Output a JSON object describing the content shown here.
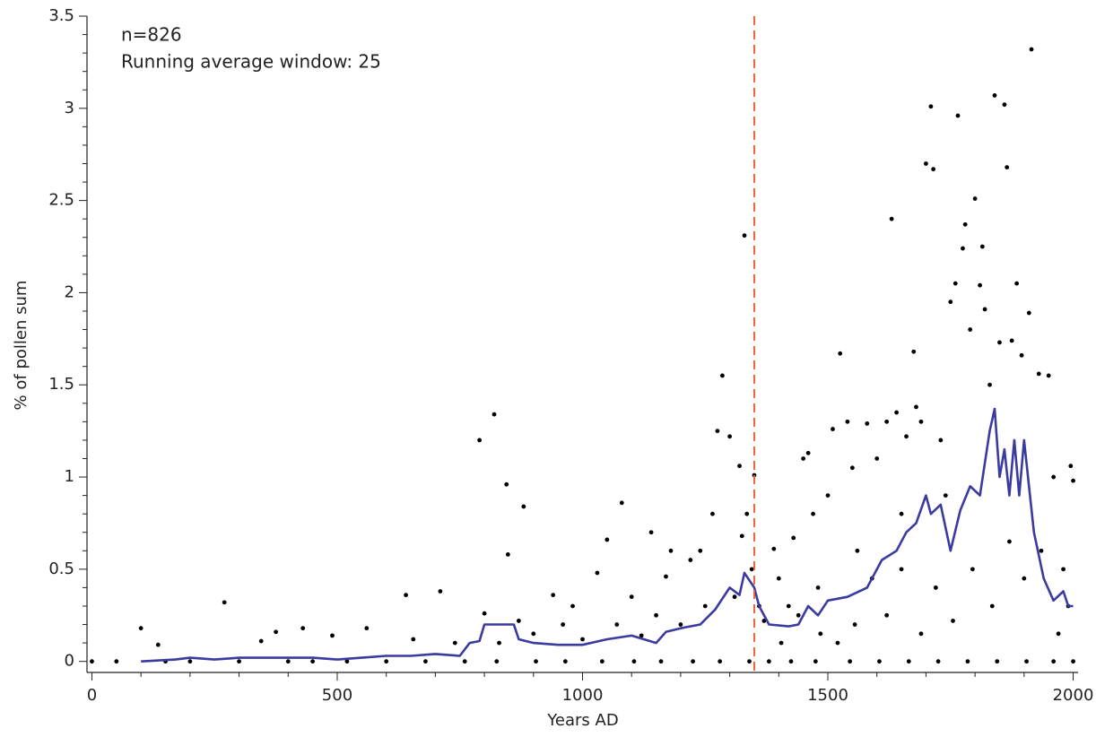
{
  "chart_data": {
    "type": "scatter",
    "annotations": [
      "n=826",
      "Running average window: 25"
    ],
    "x_label": "Years AD",
    "y_label": "% of pollen sum",
    "xlim": [
      -10,
      2010
    ],
    "ylim": [
      -0.06,
      3.5
    ],
    "xticks": [
      0,
      500,
      1000,
      1500,
      2000
    ],
    "yticks": [
      0,
      0.5,
      1,
      1.5,
      2,
      2.5,
      3,
      3.5
    ],
    "xminorticks": [
      100,
      200,
      300,
      400,
      600,
      700,
      800,
      900,
      1100,
      1200,
      1300,
      1400,
      1600,
      1700,
      1800,
      1900
    ],
    "yminorticks": [
      0.1,
      0.2,
      0.3,
      0.4,
      0.6,
      0.7,
      0.8,
      0.9,
      1.1,
      1.2,
      1.3,
      1.4,
      1.6,
      1.7,
      1.8,
      1.9,
      2.1,
      2.2,
      2.3,
      2.4,
      2.6,
      2.7,
      2.8,
      2.9,
      3.1,
      3.2,
      3.3,
      3.4
    ],
    "vline": {
      "x": 1350,
      "color": "#e8643c"
    },
    "points": {
      "color": "#000000",
      "x": [
        100,
        135,
        270,
        345,
        375,
        430,
        490,
        560,
        640,
        655,
        710,
        740,
        790,
        820,
        845,
        848,
        880,
        800,
        830,
        870,
        900,
        940,
        960,
        980,
        1000,
        1030,
        1050,
        1080,
        1070,
        1100,
        1120,
        1140,
        1150,
        1170,
        1180,
        1200,
        1220,
        1240,
        1250,
        1265,
        1275,
        1285,
        1300,
        1310,
        1320,
        1325,
        1330,
        1335,
        1345,
        1350,
        1360,
        1370,
        1390,
        1400,
        1420,
        1430,
        1450,
        1460,
        1470,
        1480,
        1500,
        1510,
        1525,
        1540,
        1550,
        1560,
        1580,
        1600,
        1620,
        1630,
        1640,
        1650,
        1660,
        1675,
        1680,
        1690,
        1700,
        1710,
        1715,
        1730,
        1740,
        1750,
        1760,
        1765,
        1775,
        1780,
        1790,
        1800,
        1810,
        1815,
        1820,
        1830,
        1840,
        1850,
        1860,
        1865,
        1875,
        1885,
        1895,
        1910,
        1915,
        1930,
        1950,
        1960,
        1980,
        1995,
        2000,
        1990,
        1970,
        1935,
        1900,
        1870,
        1835,
        1795,
        1755,
        1720,
        1690,
        1650,
        1620,
        1590,
        1555,
        1520,
        1485,
        1440,
        1405,
        0,
        50,
        150,
        200,
        300,
        400,
        450,
        520,
        600,
        680,
        760,
        825,
        905,
        965,
        1040,
        1105,
        1160,
        1225,
        1280,
        1340,
        1380,
        1425,
        1475,
        1545,
        1605,
        1665,
        1725,
        1785,
        1845,
        1905,
        1960,
        2000
      ],
      "values": [
        0.18,
        0.09,
        0.32,
        0.11,
        0.16,
        0.18,
        0.14,
        0.18,
        0.36,
        0.12,
        0.38,
        0.1,
        1.2,
        1.34,
        0.96,
        0.58,
        0.84,
        0.26,
        0.1,
        0.22,
        0.15,
        0.36,
        0.2,
        0.3,
        0.12,
        0.48,
        0.66,
        0.86,
        0.2,
        0.35,
        0.14,
        0.7,
        0.25,
        0.46,
        0.6,
        0.2,
        0.55,
        0.6,
        0.3,
        0.8,
        1.25,
        1.55,
        1.22,
        0.35,
        1.06,
        0.68,
        2.31,
        0.8,
        0.5,
        1.01,
        0.3,
        0.22,
        0.61,
        0.45,
        0.3,
        0.67,
        1.1,
        1.13,
        0.8,
        0.4,
        0.9,
        1.26,
        1.67,
        1.3,
        1.05,
        0.6,
        1.29,
        1.1,
        1.3,
        2.4,
        1.35,
        0.8,
        1.22,
        1.68,
        1.38,
        1.3,
        2.7,
        3.01,
        2.67,
        1.2,
        0.9,
        1.95,
        2.05,
        2.96,
        2.24,
        2.37,
        1.8,
        2.51,
        2.04,
        2.25,
        1.91,
        1.5,
        3.07,
        1.73,
        3.02,
        2.68,
        1.74,
        2.05,
        1.66,
        1.89,
        3.32,
        1.56,
        1.55,
        1.0,
        0.5,
        1.06,
        0.98,
        0.3,
        0.15,
        0.6,
        0.45,
        0.65,
        0.3,
        0.5,
        0.22,
        0.4,
        0.15,
        0.5,
        0.25,
        0.45,
        0.2,
        0.1,
        0.15,
        0.25,
        0.1,
        0,
        0,
        0,
        0,
        0,
        0,
        0,
        0,
        0,
        0,
        0,
        0,
        0,
        0,
        0,
        0,
        0,
        0,
        0,
        0,
        0,
        0,
        0,
        0,
        0,
        0,
        0,
        0,
        0,
        0,
        0,
        0
      ]
    },
    "running_average": {
      "color": "#3a3aa0",
      "x": [
        100,
        170,
        200,
        250,
        300,
        350,
        400,
        450,
        500,
        550,
        600,
        650,
        700,
        750,
        770,
        790,
        800,
        860,
        870,
        900,
        950,
        1000,
        1050,
        1100,
        1150,
        1170,
        1200,
        1240,
        1270,
        1300,
        1320,
        1330,
        1340,
        1350,
        1360,
        1380,
        1420,
        1440,
        1460,
        1480,
        1500,
        1540,
        1580,
        1610,
        1640,
        1660,
        1680,
        1700,
        1710,
        1730,
        1750,
        1770,
        1790,
        1810,
        1830,
        1840,
        1850,
        1860,
        1870,
        1880,
        1890,
        1900,
        1910,
        1920,
        1940,
        1960,
        1980,
        1990,
        2000
      ],
      "values": [
        0,
        0.01,
        0.02,
        0.01,
        0.02,
        0.02,
        0.02,
        0.02,
        0.01,
        0.02,
        0.03,
        0.03,
        0.04,
        0.03,
        0.1,
        0.11,
        0.2,
        0.2,
        0.12,
        0.1,
        0.09,
        0.09,
        0.12,
        0.14,
        0.1,
        0.16,
        0.18,
        0.2,
        0.28,
        0.4,
        0.36,
        0.48,
        0.44,
        0.4,
        0.3,
        0.2,
        0.19,
        0.2,
        0.3,
        0.25,
        0.33,
        0.35,
        0.4,
        0.55,
        0.6,
        0.7,
        0.75,
        0.9,
        0.8,
        0.85,
        0.6,
        0.82,
        0.95,
        0.9,
        1.25,
        1.37,
        1.0,
        1.15,
        0.9,
        1.2,
        0.9,
        1.2,
        0.95,
        0.7,
        0.45,
        0.33,
        0.38,
        0.3,
        0.3
      ]
    }
  }
}
